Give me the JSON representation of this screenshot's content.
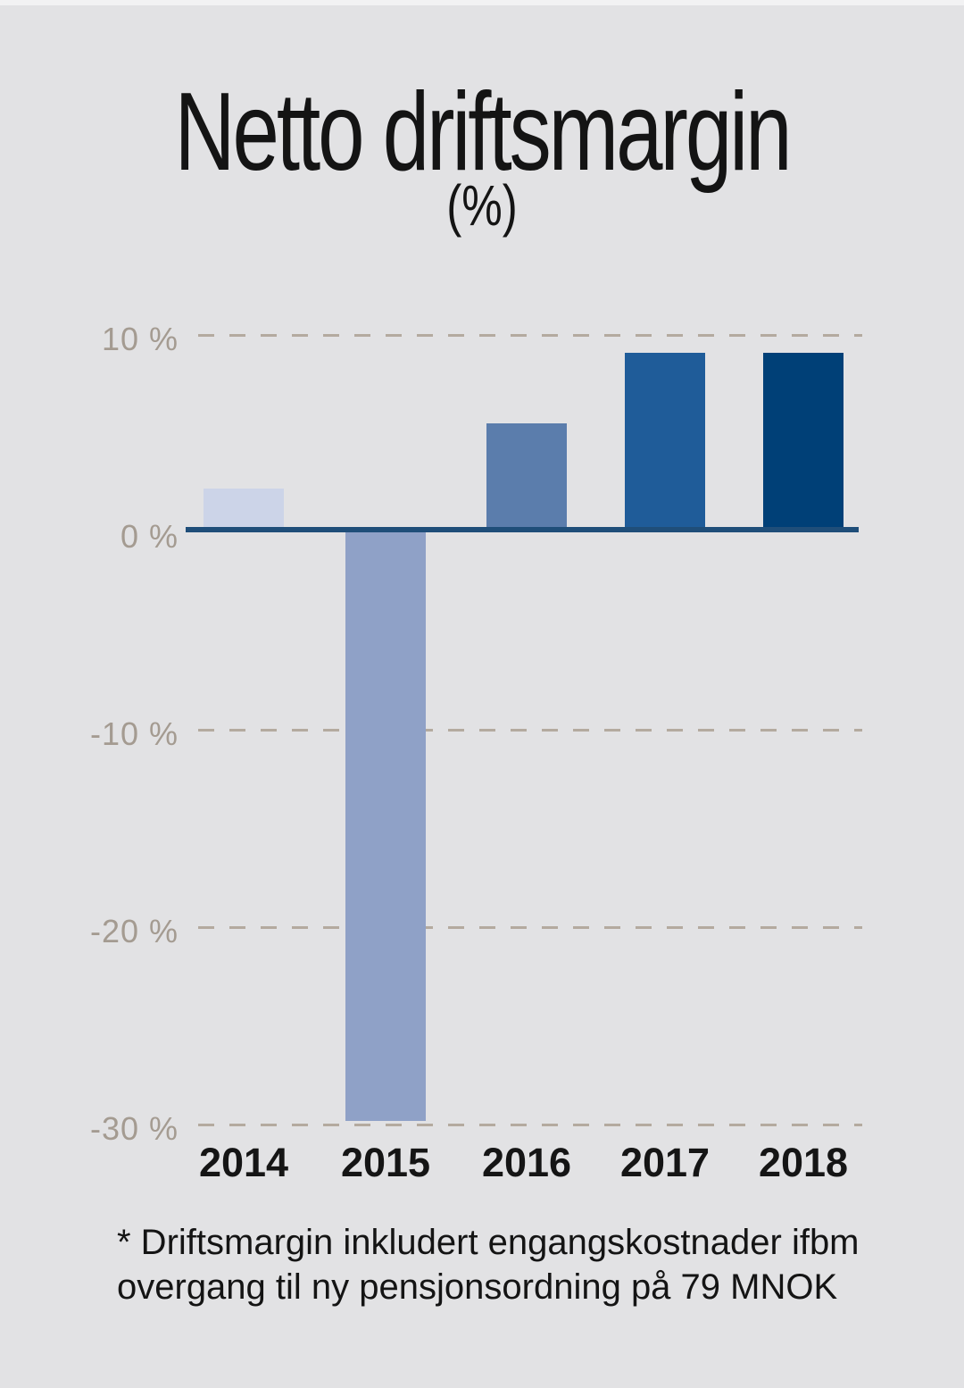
{
  "title": "Netto driftsmargin",
  "subtitle": "(%)",
  "chart_data": {
    "type": "bar",
    "title": "Netto driftsmargin",
    "subtitle": "(%)",
    "categories": [
      "2014",
      "2015",
      "2016",
      "2017",
      "2018"
    ],
    "values": [
      2.2,
      -29.8,
      5.5,
      9.1,
      9.1
    ],
    "unit": "%",
    "xlabel": "",
    "ylabel": "",
    "ylim": [
      -30,
      10
    ],
    "yticks": [
      10,
      0,
      -10,
      -20,
      -30
    ],
    "ytick_labels": [
      "10 %",
      "0 %",
      "-10 %",
      "-20 %",
      "-30 %"
    ],
    "grid": "horizontal dashed, zero line solid",
    "legend": "none",
    "bar_colors": [
      "#ccd4e8",
      "#8fa1c7",
      "#5b7dac",
      "#1f5c99",
      "#004077"
    ],
    "axis_color": "#1f4e79",
    "gridline_color": "#b4aa9f",
    "tick_label_color": "#a49b91",
    "background_color": "#e2e2e4"
  },
  "footnote": {
    "line1": "* Driftsmargin inkludert engangskostnader ifbm",
    "line2": "overgang til ny pensjonsordning på 79 MNOK"
  }
}
